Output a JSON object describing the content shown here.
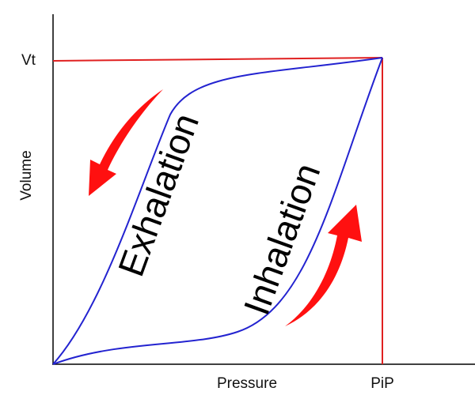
{
  "diagram": {
    "x_axis_label": "Pressure",
    "y_axis_label": "Volume",
    "peak_volume_label": "Vt",
    "peak_pressure_label": "PiP",
    "exhalation_label": "Exhalation",
    "inhalation_label": "Inhalation"
  },
  "colors": {
    "axis": "#000000",
    "reference_lines": "#e02020",
    "loop": "#2323d0",
    "arrows": "#ff1010",
    "text": "#000000"
  }
}
